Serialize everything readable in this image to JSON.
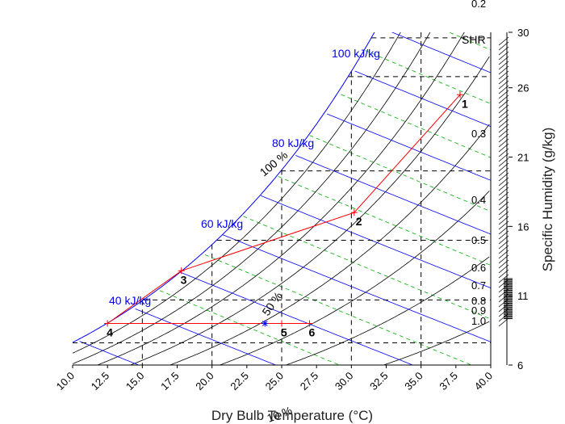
{
  "chart_data": {
    "type": "psychrometric",
    "xlabel": "Dry Bulb Temperature (°C)",
    "ylabel": "Specific Humidity (g/kg)",
    "xlim": [
      10.0,
      40.0
    ],
    "ylim": [
      6,
      30
    ],
    "x_ticks": [
      "10.0",
      "12.5",
      "15.0",
      "17.5",
      "20.0",
      "22.5",
      "25.0",
      "27.5",
      "30.0",
      "32.5",
      "35.0",
      "37.5",
      "40.0"
    ],
    "y_ticks": [
      "6",
      "11",
      "16",
      "21",
      "26",
      "30"
    ],
    "rh_labels": [
      "100 %",
      "50 %"
    ],
    "rh_50_extra": "10 %",
    "enthalpy_labels": [
      {
        "text": "40 kJ/kg",
        "value": 40
      },
      {
        "text": "60 kJ/kg",
        "value": 60
      },
      {
        "text": "80 kJ/kg",
        "value": 80
      },
      {
        "text": "100 kJ/kg",
        "value": 100
      }
    ],
    "shr_title": "SHR",
    "shr_ticks": [
      "0.2",
      "0.3",
      "0.4",
      "0.5",
      "0.6",
      "0.7",
      "0.8",
      "0.9",
      "1.0"
    ],
    "process_points": [
      {
        "label": "1",
        "tdb": 37.8,
        "w": 25.5
      },
      {
        "label": "2",
        "tdb": 30.2,
        "w": 17.0
      },
      {
        "label": "3",
        "tdb": 17.8,
        "w": 12.8
      },
      {
        "label": "4",
        "tdb": 12.5,
        "w": 9.0
      },
      {
        "label": "5",
        "tdb": 25.0,
        "w": 9.0
      },
      {
        "label": "6",
        "tdb": 27.0,
        "w": 9.0
      }
    ],
    "state_marker": {
      "tdb": 23.8,
      "w": 9.0
    },
    "colors": {
      "saturation": "#0000ff",
      "enthalpy": "#0000ff",
      "rh": "#000000",
      "wetbulb": "#00b000",
      "process": "#ff0000",
      "grid": "#000000"
    }
  }
}
